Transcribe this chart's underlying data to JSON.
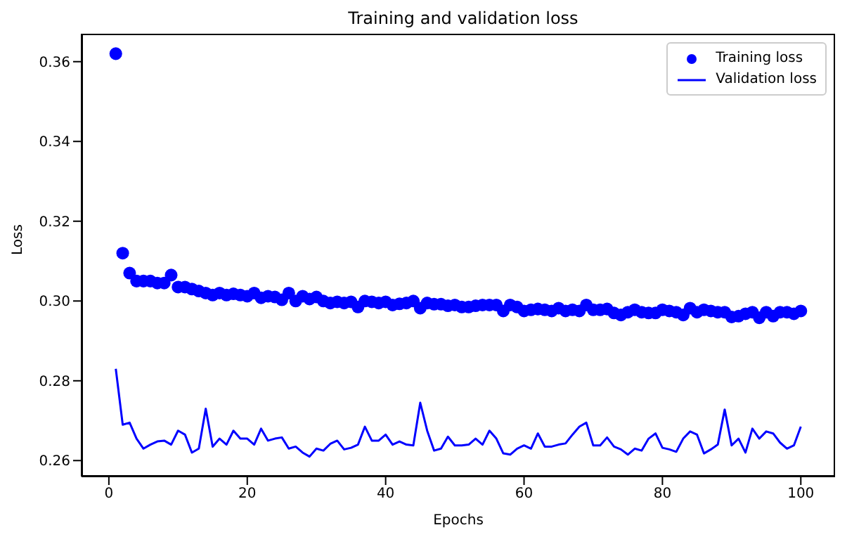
{
  "chart_data": {
    "type": "scatter",
    "title": "Training and validation loss",
    "xlabel": "Epochs",
    "ylabel": "Loss",
    "xlim": [
      -3.95,
      104.95
    ],
    "xticks": [
      0,
      20,
      40,
      60,
      80,
      100
    ],
    "ylim": [
      0.256,
      0.367
    ],
    "yticks": [
      {
        "value": 0.26,
        "label": "0.26"
      },
      {
        "value": 0.28,
        "label": "0.28"
      },
      {
        "value": 0.3,
        "label": "0.30"
      },
      {
        "value": 0.32,
        "label": "0.32"
      },
      {
        "value": 0.34,
        "label": "0.34"
      },
      {
        "value": 0.36,
        "label": "0.36"
      }
    ],
    "grid": false,
    "legend": "top right",
    "x": [
      1,
      2,
      3,
      4,
      5,
      6,
      7,
      8,
      9,
      10,
      11,
      12,
      13,
      14,
      15,
      16,
      17,
      18,
      19,
      20,
      21,
      22,
      23,
      24,
      25,
      26,
      27,
      28,
      29,
      30,
      31,
      32,
      33,
      34,
      35,
      36,
      37,
      38,
      39,
      40,
      41,
      42,
      43,
      44,
      45,
      46,
      47,
      48,
      49,
      50,
      51,
      52,
      53,
      54,
      55,
      56,
      57,
      58,
      59,
      60,
      61,
      62,
      63,
      64,
      65,
      66,
      67,
      68,
      69,
      70,
      71,
      72,
      73,
      74,
      75,
      76,
      77,
      78,
      79,
      80,
      81,
      82,
      83,
      84,
      85,
      86,
      87,
      88,
      89,
      90,
      91,
      92,
      93,
      94,
      95,
      96,
      97,
      98,
      99,
      100
    ],
    "series": [
      {
        "name": "Training loss",
        "marker": "circle",
        "color": "#0000ff",
        "values": [
          0.362,
          0.312,
          0.307,
          0.305,
          0.305,
          0.305,
          0.3045,
          0.3045,
          0.3065,
          0.3035,
          0.3035,
          0.303,
          0.3025,
          0.302,
          0.3015,
          0.302,
          0.3015,
          0.3018,
          0.3015,
          0.3012,
          0.302,
          0.3008,
          0.3012,
          0.301,
          0.3003,
          0.302,
          0.3,
          0.3012,
          0.3005,
          0.301,
          0.3,
          0.2995,
          0.2998,
          0.2995,
          0.2998,
          0.2985,
          0.3,
          0.2998,
          0.2995,
          0.2998,
          0.299,
          0.2993,
          0.2995,
          0.3,
          0.2982,
          0.2995,
          0.2992,
          0.2992,
          0.2988,
          0.299,
          0.2985,
          0.2985,
          0.2988,
          0.299,
          0.299,
          0.299,
          0.2975,
          0.299,
          0.2985,
          0.2975,
          0.2978,
          0.298,
          0.2978,
          0.2975,
          0.2982,
          0.2975,
          0.2978,
          0.2975,
          0.299,
          0.2978,
          0.2978,
          0.298,
          0.297,
          0.2965,
          0.2972,
          0.2978,
          0.2972,
          0.297,
          0.297,
          0.2978,
          0.2975,
          0.2972,
          0.2965,
          0.2982,
          0.2972,
          0.2978,
          0.2975,
          0.2972,
          0.2972,
          0.296,
          0.2962,
          0.2968,
          0.2972,
          0.2958,
          0.2972,
          0.2962,
          0.2972,
          0.2972,
          0.2968,
          0.2975
        ]
      },
      {
        "name": "Validation loss",
        "type": "line",
        "marker": "none",
        "line_style": "solid",
        "color": "#0000ff",
        "values": [
          0.283,
          0.269,
          0.2695,
          0.2655,
          0.263,
          0.264,
          0.2648,
          0.265,
          0.264,
          0.2675,
          0.2665,
          0.262,
          0.263,
          0.273,
          0.2635,
          0.2655,
          0.264,
          0.2675,
          0.2655,
          0.2655,
          0.264,
          0.268,
          0.265,
          0.2655,
          0.2658,
          0.263,
          0.2635,
          0.262,
          0.261,
          0.263,
          0.2625,
          0.2642,
          0.265,
          0.2628,
          0.2632,
          0.264,
          0.2685,
          0.265,
          0.265,
          0.2665,
          0.264,
          0.2648,
          0.264,
          0.2638,
          0.2745,
          0.2675,
          0.2625,
          0.263,
          0.266,
          0.2638,
          0.2638,
          0.264,
          0.2655,
          0.264,
          0.2675,
          0.2655,
          0.2618,
          0.2615,
          0.263,
          0.2638,
          0.263,
          0.2668,
          0.2635,
          0.2635,
          0.264,
          0.2643,
          0.2665,
          0.2685,
          0.2695,
          0.2638,
          0.2638,
          0.2658,
          0.2635,
          0.2628,
          0.2615,
          0.263,
          0.2625,
          0.2655,
          0.2668,
          0.2632,
          0.2628,
          0.2622,
          0.2655,
          0.2673,
          0.2665,
          0.2618,
          0.2628,
          0.264,
          0.2728,
          0.2638,
          0.2655,
          0.262,
          0.268,
          0.2655,
          0.2673,
          0.2668,
          0.2645,
          0.263,
          0.2638,
          0.2685
        ]
      }
    ]
  }
}
